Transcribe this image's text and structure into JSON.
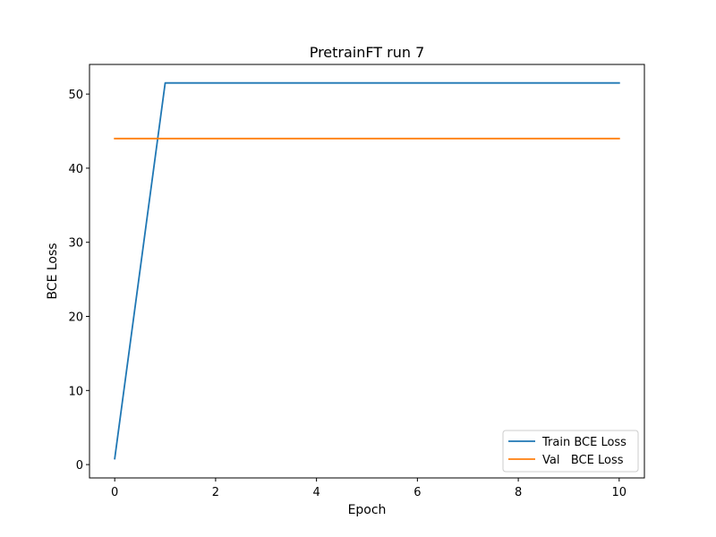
{
  "chart_data": {
    "type": "line",
    "title": "PretrainFT run 7",
    "xlabel": "Epoch",
    "ylabel": "BCE Loss",
    "xlim": [
      -0.5,
      10.5
    ],
    "ylim": [
      -1.8,
      54.0
    ],
    "xticks": [
      0,
      2,
      4,
      6,
      8,
      10
    ],
    "yticks": [
      0,
      10,
      20,
      30,
      40,
      50
    ],
    "grid": false,
    "legend_position": "lower right",
    "series": [
      {
        "name": "Train BCE Loss",
        "color": "#1f77b4",
        "x": [
          0,
          1,
          2,
          3,
          4,
          5,
          6,
          7,
          8,
          9,
          10
        ],
        "y": [
          0.8,
          51.5,
          51.5,
          51.5,
          51.5,
          51.5,
          51.5,
          51.5,
          51.5,
          51.5,
          51.5
        ]
      },
      {
        "name": "Val   BCE Loss",
        "color": "#ff7f0e",
        "x": [
          0,
          1,
          2,
          3,
          4,
          5,
          6,
          7,
          8,
          9,
          10
        ],
        "y": [
          44.0,
          44.0,
          44.0,
          44.0,
          44.0,
          44.0,
          44.0,
          44.0,
          44.0,
          44.0,
          44.0
        ]
      }
    ]
  }
}
